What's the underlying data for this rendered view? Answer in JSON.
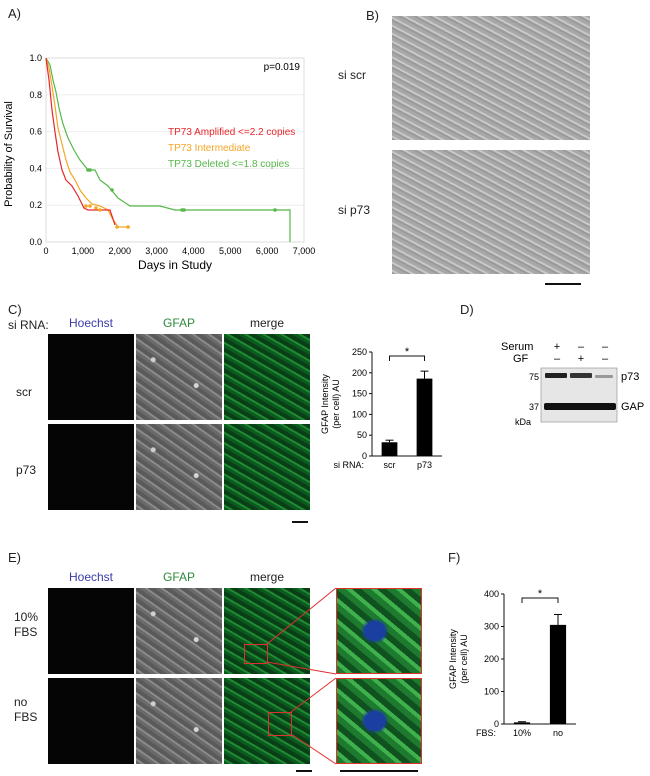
{
  "panels": {
    "a": "A)",
    "b": "B)",
    "c": "C)",
    "d": "D)",
    "e": "E)",
    "f": "F)"
  },
  "panel_a": {
    "p_value": "p=0.019",
    "ylabel": "Probability of Survival",
    "xlabel": "Days in Study",
    "yticks": [
      "0.0",
      "0.2",
      "0.4",
      "0.6",
      "0.8",
      "1.0"
    ],
    "xticks": [
      "0",
      "1,000",
      "2,000",
      "3,000",
      "4,000",
      "5,000",
      "6,000",
      "7,000"
    ],
    "legend": [
      {
        "label": "TP73 Amplified <=2.2 copies",
        "color": "#e8262a"
      },
      {
        "label": "TP73 Intermediate",
        "color": "#f5a623"
      },
      {
        "label": "TP73 Deleted <=1.8 copies",
        "color": "#55b848"
      }
    ]
  },
  "panel_b": {
    "row1": "si scr",
    "row2": "si p73"
  },
  "panel_c": {
    "side_label": "si RNA:",
    "cols": [
      "Hoechst",
      "GFAP",
      "merge"
    ],
    "col_colors": [
      "#3b3ba8",
      "#2e8a3a",
      "#222222"
    ],
    "rows": [
      "scr",
      "p73"
    ]
  },
  "panel_d": {
    "row_labels": [
      "Serum",
      "GF"
    ],
    "serum_signs": [
      "+",
      "–",
      "–"
    ],
    "gf_signs": [
      "–",
      "+",
      "–"
    ],
    "mw": [
      "75",
      "37"
    ],
    "kda": "kDa",
    "bands": [
      "p73",
      "GAPDH"
    ]
  },
  "panel_e": {
    "cols": [
      "Hoechst",
      "GFAP",
      "merge"
    ],
    "rows": [
      "10%\nFBS",
      "no\nFBS"
    ]
  },
  "chart_data": [
    {
      "type": "bar",
      "panel": "C",
      "ylabel": "GFAP Intensity (per cell) AU",
      "ylabel_line1": "GFAP Intensity",
      "ylabel_line2": "(per cell) AU",
      "xprefix": "si RNA:",
      "categories": [
        "scr",
        "p73"
      ],
      "values": [
        33,
        186
      ],
      "errors": [
        5,
        18
      ],
      "ylim": [
        0,
        250
      ],
      "yticks": [
        "0",
        "50",
        "100",
        "150",
        "200",
        "250"
      ],
      "significance": "*"
    },
    {
      "type": "bar",
      "panel": "F",
      "ylabel": "GFAP Intensity (per cell) AU",
      "ylabel_line1": "GFAP Intensity",
      "ylabel_line2": "(per cell) AU",
      "xprefix": "FBS:",
      "categories": [
        "10%",
        "no"
      ],
      "values": [
        5,
        305
      ],
      "errors": [
        2,
        32
      ],
      "ylim": [
        0,
        400
      ],
      "yticks": [
        "0",
        "100",
        "200",
        "300",
        "400"
      ],
      "significance": "*"
    }
  ]
}
